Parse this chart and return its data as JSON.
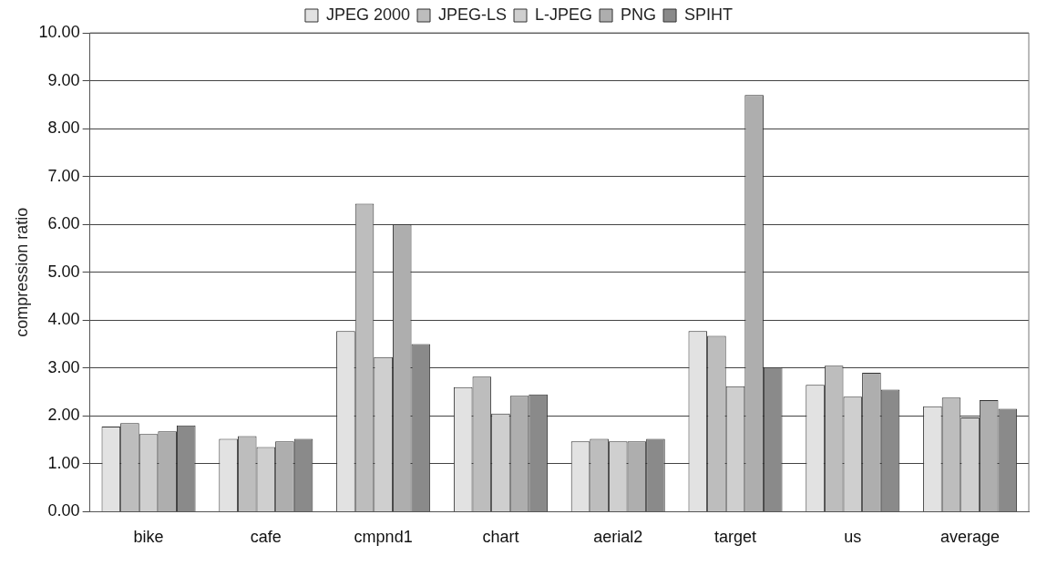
{
  "chart_data": {
    "type": "bar",
    "ylabel": "compression ratio",
    "categories": [
      "bike",
      "cafe",
      "cmpnd1",
      "chart",
      "aerial2",
      "target",
      "us",
      "average"
    ],
    "series": [
      {
        "name": "JPEG 2000",
        "color": "#e2e2e2",
        "values": [
          1.78,
          1.52,
          3.77,
          2.6,
          1.47,
          3.77,
          2.65,
          2.2
        ]
      },
      {
        "name": "JPEG-LS",
        "color": "#bdbdbd",
        "values": [
          1.85,
          1.58,
          6.43,
          2.82,
          1.52,
          3.67,
          3.05,
          2.38
        ]
      },
      {
        "name": "L-JPEG",
        "color": "#cfcfcf",
        "values": [
          1.62,
          1.35,
          3.23,
          2.05,
          1.47,
          2.62,
          2.4,
          1.97
        ]
      },
      {
        "name": "PNG",
        "color": "#aeaeae",
        "values": [
          1.68,
          1.47,
          6.0,
          2.42,
          1.47,
          8.7,
          2.9,
          2.33
        ]
      },
      {
        "name": "SPIHT",
        "color": "#8a8a8a",
        "values": [
          1.8,
          1.52,
          3.5,
          2.45,
          1.52,
          3.02,
          2.55,
          2.15
        ]
      }
    ],
    "ylim": [
      0,
      10
    ],
    "yticks": [
      {
        "value": 0,
        "label": "0.00"
      },
      {
        "value": 1,
        "label": "1.00"
      },
      {
        "value": 2,
        "label": "2.00"
      },
      {
        "value": 3,
        "label": "3.00"
      },
      {
        "value": 4,
        "label": "4.00"
      },
      {
        "value": 5,
        "label": "5.00"
      },
      {
        "value": 6,
        "label": "6.00"
      },
      {
        "value": 7,
        "label": "7.00"
      },
      {
        "value": 8,
        "label": "8.00"
      },
      {
        "value": 9,
        "label": "9.00"
      },
      {
        "value": 10,
        "label": "10.00"
      }
    ],
    "grid": "y",
    "legend": "top"
  }
}
